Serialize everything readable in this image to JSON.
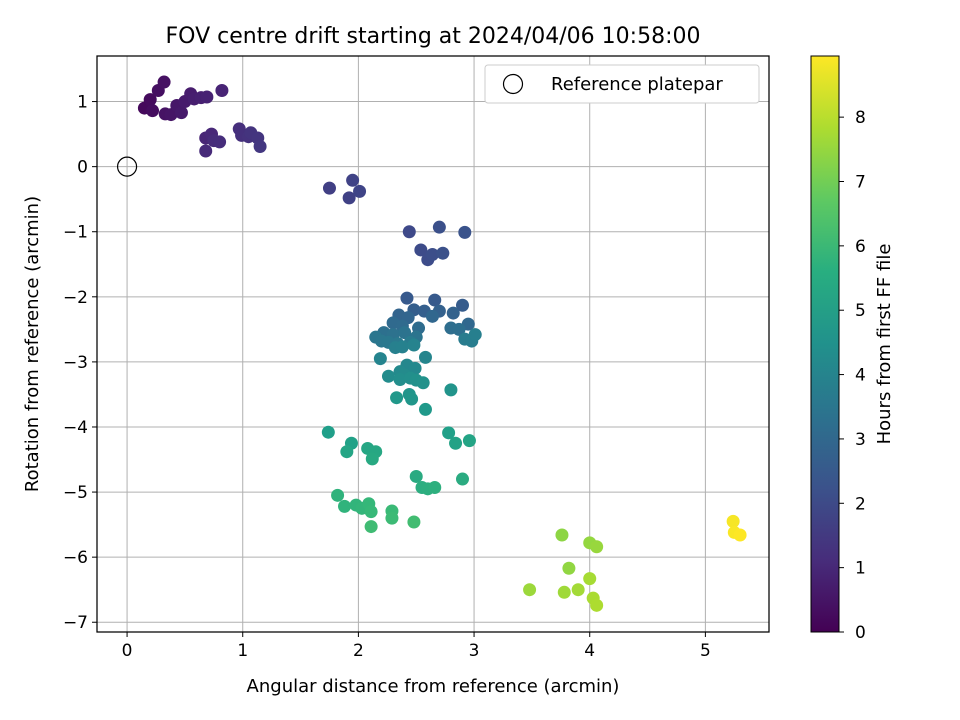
{
  "chart_data": {
    "type": "scatter",
    "title": "FOV centre drift starting at 2024/04/06 10:58:00",
    "xlabel": "Angular distance from reference (arcmin)",
    "ylabel": "Rotation from reference (arcmin)",
    "xlim": [
      -0.26,
      5.55
    ],
    "ylim": [
      -7.15,
      1.7
    ],
    "x_ticks": [
      0,
      1,
      2,
      3,
      4,
      5
    ],
    "y_ticks": [
      1,
      0,
      -1,
      -2,
      -3,
      -4,
      -5,
      -6,
      -7
    ],
    "grid": true,
    "legend": {
      "position": "top-right",
      "entries": [
        "Reference platepar"
      ]
    },
    "reference_point": {
      "x": 0,
      "y": 0
    },
    "colorbar": {
      "label": "Hours from first FF file",
      "colormap": "viridis",
      "range": [
        0,
        8.95
      ],
      "ticks": [
        0,
        1,
        2,
        3,
        4,
        5,
        6,
        7,
        8
      ]
    },
    "points": [
      {
        "x": 0.15,
        "y": 0.9,
        "h": 0.2
      },
      {
        "x": 0.2,
        "y": 1.03,
        "h": 0.25
      },
      {
        "x": 0.22,
        "y": 0.86,
        "h": 0.3
      },
      {
        "x": 0.27,
        "y": 1.17,
        "h": 0.35
      },
      {
        "x": 0.32,
        "y": 1.3,
        "h": 0.4
      },
      {
        "x": 0.33,
        "y": 0.81,
        "h": 0.45
      },
      {
        "x": 0.38,
        "y": 0.8,
        "h": 0.5
      },
      {
        "x": 0.43,
        "y": 0.94,
        "h": 0.55
      },
      {
        "x": 0.47,
        "y": 0.83,
        "h": 0.6
      },
      {
        "x": 0.5,
        "y": 1.0,
        "h": 0.65
      },
      {
        "x": 0.55,
        "y": 1.12,
        "h": 0.7
      },
      {
        "x": 0.58,
        "y": 1.04,
        "h": 0.75
      },
      {
        "x": 0.64,
        "y": 1.06,
        "h": 0.8
      },
      {
        "x": 0.69,
        "y": 1.07,
        "h": 0.85
      },
      {
        "x": 0.82,
        "y": 1.17,
        "h": 0.9
      },
      {
        "x": 0.68,
        "y": 0.44,
        "h": 0.95
      },
      {
        "x": 0.73,
        "y": 0.5,
        "h": 1.0
      },
      {
        "x": 0.68,
        "y": 0.24,
        "h": 1.05
      },
      {
        "x": 0.75,
        "y": 0.4,
        "h": 1.1
      },
      {
        "x": 0.8,
        "y": 0.38,
        "h": 1.15
      },
      {
        "x": 0.97,
        "y": 0.58,
        "h": 1.2
      },
      {
        "x": 0.99,
        "y": 0.48,
        "h": 1.25
      },
      {
        "x": 1.05,
        "y": 0.46,
        "h": 1.3
      },
      {
        "x": 1.07,
        "y": 0.52,
        "h": 1.35
      },
      {
        "x": 1.13,
        "y": 0.44,
        "h": 1.4
      },
      {
        "x": 1.15,
        "y": 0.31,
        "h": 1.45
      },
      {
        "x": 1.75,
        "y": -0.33,
        "h": 1.7
      },
      {
        "x": 1.92,
        "y": -0.48,
        "h": 1.75
      },
      {
        "x": 1.95,
        "y": -0.21,
        "h": 1.8
      },
      {
        "x": 2.01,
        "y": -0.38,
        "h": 1.85
      },
      {
        "x": 2.44,
        "y": -1.0,
        "h": 2.0
      },
      {
        "x": 2.54,
        "y": -1.28,
        "h": 2.05
      },
      {
        "x": 2.6,
        "y": -1.43,
        "h": 2.1
      },
      {
        "x": 2.64,
        "y": -1.35,
        "h": 2.15
      },
      {
        "x": 2.7,
        "y": -0.93,
        "h": 2.2
      },
      {
        "x": 2.73,
        "y": -1.33,
        "h": 2.25
      },
      {
        "x": 2.92,
        "y": -1.01,
        "h": 2.3
      },
      {
        "x": 2.42,
        "y": -2.02,
        "h": 2.5
      },
      {
        "x": 2.66,
        "y": -2.05,
        "h": 2.55
      },
      {
        "x": 2.9,
        "y": -2.13,
        "h": 2.6
      },
      {
        "x": 2.48,
        "y": -2.2,
        "h": 2.65
      },
      {
        "x": 2.57,
        "y": -2.22,
        "h": 2.7
      },
      {
        "x": 2.7,
        "y": -2.22,
        "h": 2.75
      },
      {
        "x": 2.82,
        "y": -2.25,
        "h": 2.8
      },
      {
        "x": 2.35,
        "y": -2.28,
        "h": 2.85
      },
      {
        "x": 2.43,
        "y": -2.32,
        "h": 2.9
      },
      {
        "x": 2.64,
        "y": -2.3,
        "h": 2.95
      },
      {
        "x": 2.95,
        "y": -2.42,
        "h": 3.0
      },
      {
        "x": 2.3,
        "y": -2.4,
        "h": 3.05
      },
      {
        "x": 2.38,
        "y": -2.45,
        "h": 3.1
      },
      {
        "x": 2.52,
        "y": -2.48,
        "h": 3.15
      },
      {
        "x": 2.8,
        "y": -2.48,
        "h": 3.2
      },
      {
        "x": 2.87,
        "y": -2.5,
        "h": 3.25
      },
      {
        "x": 2.22,
        "y": -2.55,
        "h": 3.3
      },
      {
        "x": 2.3,
        "y": -2.58,
        "h": 3.35
      },
      {
        "x": 2.4,
        "y": -2.55,
        "h": 3.4
      },
      {
        "x": 2.5,
        "y": -2.62,
        "h": 3.45
      },
      {
        "x": 2.15,
        "y": -2.62,
        "h": 3.5
      },
      {
        "x": 2.2,
        "y": -2.68,
        "h": 3.55
      },
      {
        "x": 2.26,
        "y": -2.7,
        "h": 3.6
      },
      {
        "x": 2.34,
        "y": -2.72,
        "h": 3.65
      },
      {
        "x": 2.45,
        "y": -2.7,
        "h": 3.7
      },
      {
        "x": 2.92,
        "y": -2.65,
        "h": 3.75
      },
      {
        "x": 2.98,
        "y": -2.68,
        "h": 3.8
      },
      {
        "x": 3.01,
        "y": -2.58,
        "h": 3.85
      },
      {
        "x": 2.32,
        "y": -2.78,
        "h": 3.9
      },
      {
        "x": 2.38,
        "y": -2.77,
        "h": 3.95
      },
      {
        "x": 2.48,
        "y": -2.74,
        "h": 4.0
      },
      {
        "x": 2.19,
        "y": -2.95,
        "h": 4.05
      },
      {
        "x": 2.58,
        "y": -2.93,
        "h": 4.1
      },
      {
        "x": 2.42,
        "y": -3.05,
        "h": 4.15
      },
      {
        "x": 2.49,
        "y": -3.1,
        "h": 4.2
      },
      {
        "x": 2.36,
        "y": -3.15,
        "h": 4.25
      },
      {
        "x": 2.4,
        "y": -3.2,
        "h": 4.3
      },
      {
        "x": 2.26,
        "y": -3.22,
        "h": 4.35
      },
      {
        "x": 2.36,
        "y": -3.27,
        "h": 4.4
      },
      {
        "x": 2.45,
        "y": -3.25,
        "h": 4.45
      },
      {
        "x": 2.5,
        "y": -3.28,
        "h": 4.5
      },
      {
        "x": 2.56,
        "y": -3.32,
        "h": 4.55
      },
      {
        "x": 2.8,
        "y": -3.43,
        "h": 4.6
      },
      {
        "x": 2.44,
        "y": -3.5,
        "h": 4.65
      },
      {
        "x": 2.46,
        "y": -3.57,
        "h": 4.7
      },
      {
        "x": 2.33,
        "y": -3.55,
        "h": 4.75
      },
      {
        "x": 2.58,
        "y": -3.73,
        "h": 4.8
      },
      {
        "x": 1.74,
        "y": -4.08,
        "h": 5.0
      },
      {
        "x": 2.78,
        "y": -4.09,
        "h": 5.05
      },
      {
        "x": 1.94,
        "y": -4.25,
        "h": 5.1
      },
      {
        "x": 2.84,
        "y": -4.25,
        "h": 5.15
      },
      {
        "x": 2.96,
        "y": -4.21,
        "h": 5.2
      },
      {
        "x": 1.9,
        "y": -4.38,
        "h": 5.25
      },
      {
        "x": 2.08,
        "y": -4.33,
        "h": 5.3
      },
      {
        "x": 2.15,
        "y": -4.38,
        "h": 5.35
      },
      {
        "x": 2.12,
        "y": -4.49,
        "h": 5.4
      },
      {
        "x": 2.5,
        "y": -4.76,
        "h": 5.45
      },
      {
        "x": 2.9,
        "y": -4.8,
        "h": 5.5
      },
      {
        "x": 2.55,
        "y": -4.93,
        "h": 5.55
      },
      {
        "x": 2.6,
        "y": -4.95,
        "h": 5.6
      },
      {
        "x": 2.66,
        "y": -4.93,
        "h": 5.65
      },
      {
        "x": 1.82,
        "y": -5.05,
        "h": 5.75
      },
      {
        "x": 1.88,
        "y": -5.22,
        "h": 5.8
      },
      {
        "x": 1.98,
        "y": -5.2,
        "h": 5.85
      },
      {
        "x": 2.03,
        "y": -5.25,
        "h": 5.9
      },
      {
        "x": 2.09,
        "y": -5.18,
        "h": 5.95
      },
      {
        "x": 2.11,
        "y": -5.3,
        "h": 6.0
      },
      {
        "x": 2.29,
        "y": -5.29,
        "h": 6.05
      },
      {
        "x": 2.29,
        "y": -5.4,
        "h": 6.1
      },
      {
        "x": 2.11,
        "y": -5.53,
        "h": 6.15
      },
      {
        "x": 2.48,
        "y": -5.46,
        "h": 6.2
      },
      {
        "x": 3.76,
        "y": -5.66,
        "h": 7.4
      },
      {
        "x": 3.82,
        "y": -6.17,
        "h": 7.45
      },
      {
        "x": 4.0,
        "y": -5.78,
        "h": 7.5
      },
      {
        "x": 4.06,
        "y": -5.84,
        "h": 7.55
      },
      {
        "x": 3.48,
        "y": -6.5,
        "h": 7.6
      },
      {
        "x": 3.78,
        "y": -6.54,
        "h": 7.65
      },
      {
        "x": 3.9,
        "y": -6.5,
        "h": 7.7
      },
      {
        "x": 4.0,
        "y": -6.33,
        "h": 7.75
      },
      {
        "x": 4.03,
        "y": -6.63,
        "h": 7.8
      },
      {
        "x": 4.06,
        "y": -6.74,
        "h": 7.85
      },
      {
        "x": 5.24,
        "y": -5.45,
        "h": 8.85
      },
      {
        "x": 5.25,
        "y": -5.62,
        "h": 8.9
      },
      {
        "x": 5.3,
        "y": -5.66,
        "h": 8.95
      }
    ]
  }
}
